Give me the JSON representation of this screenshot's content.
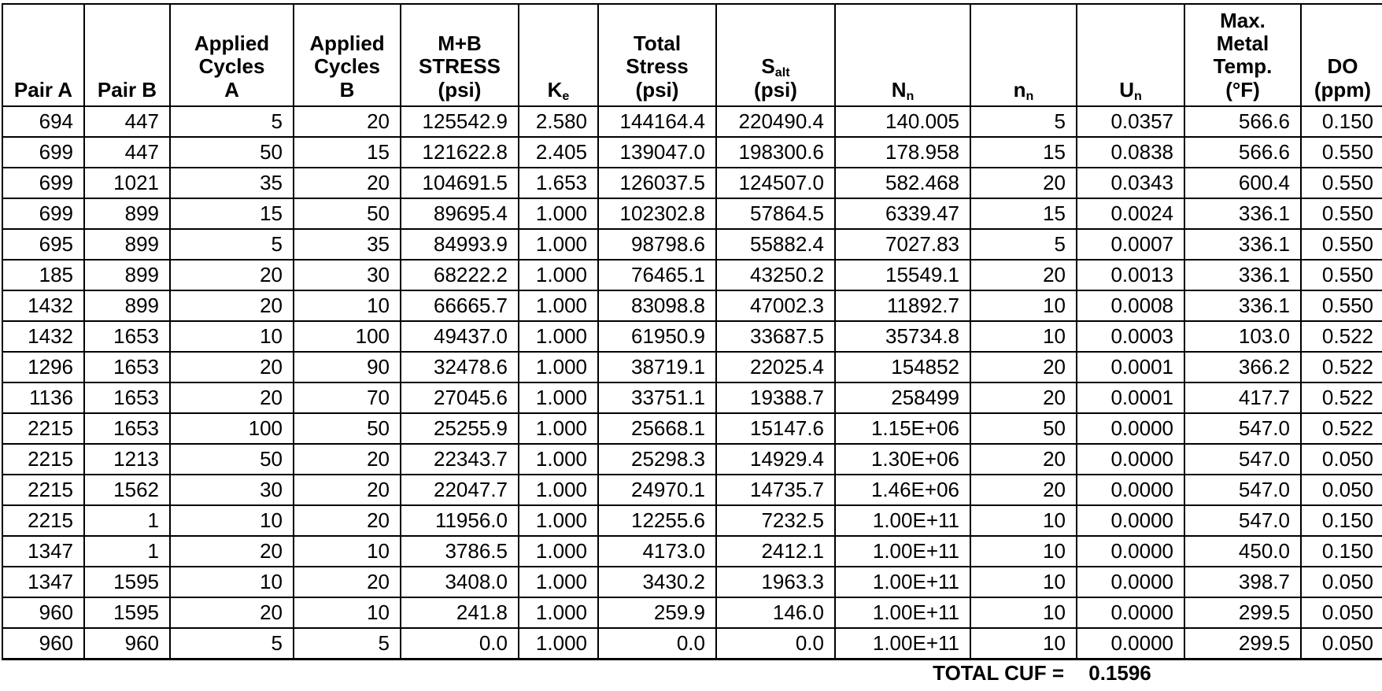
{
  "table": {
    "column_keys": [
      "pair_a",
      "pair_b",
      "applied_cycles_a",
      "applied_cycles_b",
      "mb_stress",
      "ke",
      "total_stress",
      "salt",
      "nn_allowable",
      "nn_applied",
      "un",
      "max_metal_temp",
      "do_ppm"
    ],
    "headers": {
      "pair_a": "Pair A",
      "pair_b": "Pair B",
      "applied_cycles_a": "Applied\nCycles\nA",
      "applied_cycles_b": "Applied\nCycles\nB",
      "mb_stress": "M+B\nSTRESS\n(psi)",
      "ke": {
        "base": "K",
        "sub": "e"
      },
      "total_stress": "Total\nStress\n(psi)",
      "salt": {
        "base": "S",
        "sub": "alt",
        "unit": "(psi)"
      },
      "nn_allowable": {
        "base": "N",
        "sub": "n"
      },
      "nn_applied": {
        "base": "n",
        "sub": "n"
      },
      "un": {
        "base": "U",
        "sub": "n"
      },
      "max_metal_temp": "Max.\nMetal\nTemp.\n(°F)",
      "do_ppm": "DO\n(ppm)"
    },
    "rows": [
      [
        "694",
        "447",
        "5",
        "20",
        "125542.9",
        "2.580",
        "144164.4",
        "220490.4",
        "140.005",
        "5",
        "0.0357",
        "566.6",
        "0.150"
      ],
      [
        "699",
        "447",
        "50",
        "15",
        "121622.8",
        "2.405",
        "139047.0",
        "198300.6",
        "178.958",
        "15",
        "0.0838",
        "566.6",
        "0.550"
      ],
      [
        "699",
        "1021",
        "35",
        "20",
        "104691.5",
        "1.653",
        "126037.5",
        "124507.0",
        "582.468",
        "20",
        "0.0343",
        "600.4",
        "0.550"
      ],
      [
        "699",
        "899",
        "15",
        "50",
        "89695.4",
        "1.000",
        "102302.8",
        "57864.5",
        "6339.47",
        "15",
        "0.0024",
        "336.1",
        "0.550"
      ],
      [
        "695",
        "899",
        "5",
        "35",
        "84993.9",
        "1.000",
        "98798.6",
        "55882.4",
        "7027.83",
        "5",
        "0.0007",
        "336.1",
        "0.550"
      ],
      [
        "185",
        "899",
        "20",
        "30",
        "68222.2",
        "1.000",
        "76465.1",
        "43250.2",
        "15549.1",
        "20",
        "0.0013",
        "336.1",
        "0.550"
      ],
      [
        "1432",
        "899",
        "20",
        "10",
        "66665.7",
        "1.000",
        "83098.8",
        "47002.3",
        "11892.7",
        "10",
        "0.0008",
        "336.1",
        "0.550"
      ],
      [
        "1432",
        "1653",
        "10",
        "100",
        "49437.0",
        "1.000",
        "61950.9",
        "33687.5",
        "35734.8",
        "10",
        "0.0003",
        "103.0",
        "0.522"
      ],
      [
        "1296",
        "1653",
        "20",
        "90",
        "32478.6",
        "1.000",
        "38719.1",
        "22025.4",
        "154852",
        "20",
        "0.0001",
        "366.2",
        "0.522"
      ],
      [
        "1136",
        "1653",
        "20",
        "70",
        "27045.6",
        "1.000",
        "33751.1",
        "19388.7",
        "258499",
        "20",
        "0.0001",
        "417.7",
        "0.522"
      ],
      [
        "2215",
        "1653",
        "100",
        "50",
        "25255.9",
        "1.000",
        "25668.1",
        "15147.6",
        "1.15E+06",
        "50",
        "0.0000",
        "547.0",
        "0.522"
      ],
      [
        "2215",
        "1213",
        "50",
        "20",
        "22343.7",
        "1.000",
        "25298.3",
        "14929.4",
        "1.30E+06",
        "20",
        "0.0000",
        "547.0",
        "0.050"
      ],
      [
        "2215",
        "1562",
        "30",
        "20",
        "22047.7",
        "1.000",
        "24970.1",
        "14735.7",
        "1.46E+06",
        "20",
        "0.0000",
        "547.0",
        "0.050"
      ],
      [
        "2215",
        "1",
        "10",
        "20",
        "11956.0",
        "1.000",
        "12255.6",
        "7232.5",
        "1.00E+11",
        "10",
        "0.0000",
        "547.0",
        "0.150"
      ],
      [
        "1347",
        "1",
        "20",
        "10",
        "3786.5",
        "1.000",
        "4173.0",
        "2412.1",
        "1.00E+11",
        "10",
        "0.0000",
        "450.0",
        "0.150"
      ],
      [
        "1347",
        "1595",
        "10",
        "20",
        "3408.0",
        "1.000",
        "3430.2",
        "1963.3",
        "1.00E+11",
        "10",
        "0.0000",
        "398.7",
        "0.050"
      ],
      [
        "960",
        "1595",
        "20",
        "10",
        "241.8",
        "1.000",
        "259.9",
        "146.0",
        "1.00E+11",
        "10",
        "0.0000",
        "299.5",
        "0.050"
      ],
      [
        "960",
        "960",
        "5",
        "5",
        "0.0",
        "1.000",
        "0.0",
        "0.0",
        "1.00E+11",
        "10",
        "0.0000",
        "299.5",
        "0.050"
      ]
    ]
  },
  "footer": {
    "total_label": "TOTAL CUF =",
    "total_value": "0.1596"
  }
}
